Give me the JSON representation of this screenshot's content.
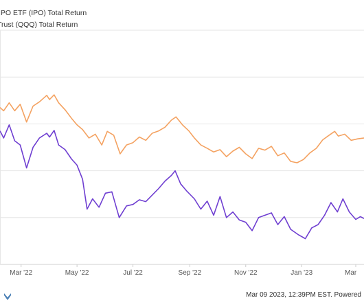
{
  "legend": [
    {
      "label": "IPO ETF (IPO) Total Return",
      "color": "#f4a261",
      "offset": -2
    },
    {
      "label": "Trust (QQQ) Total Return",
      "color": "#6f3fd1",
      "offset": -4
    }
  ],
  "footer": {
    "timestamp": "Mar 09 2023, 12:39PM EST. Powered"
  },
  "colors": {
    "grid": "#e6e6e6",
    "axis_text": "#555555",
    "logo": "#4a7fb5"
  },
  "chart_data": {
    "type": "line",
    "x_tick_labels": [
      "Mar '22",
      "May '22",
      "Jul '22",
      "Sep '22",
      "Nov '22",
      "Jan '23",
      "Mar"
    ],
    "x_tick_dates": [
      "2022-03-01",
      "2022-05-01",
      "2022-07-01",
      "2022-09-01",
      "2022-11-01",
      "2023-01-01",
      "2023-03-01"
    ],
    "xlim": [
      "2022-02-06",
      "2023-03-10"
    ],
    "ylim": [
      0,
      5
    ],
    "y_gridlines": [
      1,
      2,
      3,
      4,
      5
    ],
    "y_tick_labels": [],
    "grid": true,
    "series": [
      {
        "name": "IPO ETF (IPO) Total Return",
        "color": "#f4a261",
        "points": [
          [
            "2022-02-06",
            3.35
          ],
          [
            "2022-02-10",
            3.28
          ],
          [
            "2022-02-16",
            3.45
          ],
          [
            "2022-02-22",
            3.28
          ],
          [
            "2022-02-28",
            3.42
          ],
          [
            "2022-03-07",
            3.04
          ],
          [
            "2022-03-14",
            3.38
          ],
          [
            "2022-03-21",
            3.47
          ],
          [
            "2022-03-29",
            3.61
          ],
          [
            "2022-04-01",
            3.52
          ],
          [
            "2022-04-06",
            3.62
          ],
          [
            "2022-04-11",
            3.45
          ],
          [
            "2022-04-18",
            3.3
          ],
          [
            "2022-04-25",
            3.12
          ],
          [
            "2022-05-01",
            2.98
          ],
          [
            "2022-05-07",
            2.88
          ],
          [
            "2022-05-14",
            2.7
          ],
          [
            "2022-05-21",
            2.78
          ],
          [
            "2022-05-28",
            2.55
          ],
          [
            "2022-06-03",
            2.84
          ],
          [
            "2022-06-10",
            2.76
          ],
          [
            "2022-06-17",
            2.36
          ],
          [
            "2022-06-24",
            2.55
          ],
          [
            "2022-07-01",
            2.6
          ],
          [
            "2022-07-08",
            2.72
          ],
          [
            "2022-07-15",
            2.65
          ],
          [
            "2022-07-22",
            2.8
          ],
          [
            "2022-07-29",
            2.85
          ],
          [
            "2022-08-05",
            2.93
          ],
          [
            "2022-08-12",
            3.08
          ],
          [
            "2022-08-17",
            3.15
          ],
          [
            "2022-08-24",
            2.98
          ],
          [
            "2022-08-31",
            2.85
          ],
          [
            "2022-09-06",
            2.7
          ],
          [
            "2022-09-13",
            2.55
          ],
          [
            "2022-09-20",
            2.48
          ],
          [
            "2022-09-27",
            2.4
          ],
          [
            "2022-10-04",
            2.45
          ],
          [
            "2022-10-11",
            2.3
          ],
          [
            "2022-10-18",
            2.42
          ],
          [
            "2022-10-25",
            2.5
          ],
          [
            "2022-11-01",
            2.36
          ],
          [
            "2022-11-08",
            2.26
          ],
          [
            "2022-11-15",
            2.48
          ],
          [
            "2022-11-22",
            2.44
          ],
          [
            "2022-11-29",
            2.52
          ],
          [
            "2022-12-06",
            2.32
          ],
          [
            "2022-12-13",
            2.38
          ],
          [
            "2022-12-20",
            2.2
          ],
          [
            "2022-12-27",
            2.17
          ],
          [
            "2023-01-03",
            2.24
          ],
          [
            "2023-01-10",
            2.38
          ],
          [
            "2023-01-17",
            2.48
          ],
          [
            "2023-01-24",
            2.66
          ],
          [
            "2023-01-31",
            2.76
          ],
          [
            "2023-02-06",
            2.84
          ],
          [
            "2023-02-10",
            2.74
          ],
          [
            "2023-02-17",
            2.78
          ],
          [
            "2023-02-24",
            2.65
          ],
          [
            "2023-03-03",
            2.68
          ],
          [
            "2023-03-10",
            2.7
          ]
        ]
      },
      {
        "name": "Trust (QQQ) Total Return",
        "color": "#6f3fd1",
        "points": [
          [
            "2022-02-06",
            2.85
          ],
          [
            "2022-02-10",
            2.7
          ],
          [
            "2022-02-16",
            2.98
          ],
          [
            "2022-02-22",
            2.64
          ],
          [
            "2022-02-28",
            2.55
          ],
          [
            "2022-03-07",
            2.06
          ],
          [
            "2022-03-14",
            2.5
          ],
          [
            "2022-03-21",
            2.7
          ],
          [
            "2022-03-29",
            2.8
          ],
          [
            "2022-04-01",
            2.72
          ],
          [
            "2022-04-06",
            2.86
          ],
          [
            "2022-04-11",
            2.55
          ],
          [
            "2022-04-18",
            2.45
          ],
          [
            "2022-04-25",
            2.25
          ],
          [
            "2022-05-01",
            2.12
          ],
          [
            "2022-05-07",
            1.82
          ],
          [
            "2022-05-12",
            1.18
          ],
          [
            "2022-05-18",
            1.4
          ],
          [
            "2022-05-25",
            1.22
          ],
          [
            "2022-06-01",
            1.52
          ],
          [
            "2022-06-08",
            1.55
          ],
          [
            "2022-06-16",
            1.0
          ],
          [
            "2022-06-24",
            1.25
          ],
          [
            "2022-07-01",
            1.28
          ],
          [
            "2022-07-08",
            1.38
          ],
          [
            "2022-07-15",
            1.34
          ],
          [
            "2022-07-22",
            1.48
          ],
          [
            "2022-07-29",
            1.62
          ],
          [
            "2022-08-05",
            1.78
          ],
          [
            "2022-08-12",
            1.9
          ],
          [
            "2022-08-16",
            2.0
          ],
          [
            "2022-08-22",
            1.72
          ],
          [
            "2022-08-29",
            1.56
          ],
          [
            "2022-09-06",
            1.4
          ],
          [
            "2022-09-13",
            1.18
          ],
          [
            "2022-09-20",
            1.35
          ],
          [
            "2022-09-27",
            1.05
          ],
          [
            "2022-10-04",
            1.45
          ],
          [
            "2022-10-11",
            1.0
          ],
          [
            "2022-10-18",
            1.12
          ],
          [
            "2022-10-25",
            0.95
          ],
          [
            "2022-11-01",
            0.9
          ],
          [
            "2022-11-08",
            0.72
          ],
          [
            "2022-11-15",
            1.0
          ],
          [
            "2022-11-22",
            1.05
          ],
          [
            "2022-11-29",
            1.1
          ],
          [
            "2022-12-06",
            0.85
          ],
          [
            "2022-12-13",
            1.02
          ],
          [
            "2022-12-20",
            0.75
          ],
          [
            "2022-12-28",
            0.64
          ],
          [
            "2023-01-05",
            0.55
          ],
          [
            "2023-01-12",
            0.78
          ],
          [
            "2023-01-19",
            0.85
          ],
          [
            "2023-01-26",
            1.05
          ],
          [
            "2023-02-02",
            1.32
          ],
          [
            "2023-02-09",
            1.12
          ],
          [
            "2023-02-15",
            1.4
          ],
          [
            "2023-02-22",
            1.12
          ],
          [
            "2023-03-01",
            0.96
          ],
          [
            "2023-03-06",
            1.02
          ],
          [
            "2023-03-10",
            0.98
          ]
        ]
      }
    ]
  }
}
